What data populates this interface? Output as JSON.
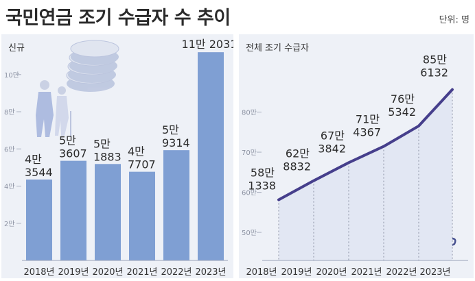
{
  "header": {
    "title": "국민연금 조기 수급자 수 추이",
    "unit": "단위: 명"
  },
  "colors": {
    "bar": "#7f9fd3",
    "line": "#463f8c",
    "grid": "#cfd6e6",
    "panel": "#eef1f7",
    "text": "#2b2b2b",
    "illustration": "#a8b7de"
  },
  "icons": {
    "left": "elderly-couple-coins-icon",
    "right": "money-bag-hand-icon"
  },
  "chart_data": [
    {
      "type": "bar",
      "title": "신규",
      "categories": [
        "2018년",
        "2019년",
        "2020년",
        "2021년",
        "2022년",
        "2023년"
      ],
      "values": [
        43544,
        53607,
        51883,
        47707,
        59314,
        112031
      ],
      "data_labels": [
        [
          "4만",
          "3544"
        ],
        [
          "5만",
          "3607"
        ],
        [
          "5만",
          "1883"
        ],
        [
          "4만",
          "7707"
        ],
        [
          "5만",
          "9314"
        ],
        [
          "11만 2031"
        ]
      ],
      "yticks": [
        20000,
        40000,
        60000,
        80000,
        100000
      ],
      "ytick_labels": [
        "2만",
        "4만",
        "6만",
        "8만",
        "10만"
      ],
      "ylim": [
        0,
        125000
      ],
      "grid": false
    },
    {
      "type": "line",
      "title": "전체 조기 수급자",
      "categories": [
        "2018년",
        "2019년",
        "2020년",
        "2021년",
        "2022년",
        "2023년"
      ],
      "values": [
        581338,
        628832,
        673842,
        714367,
        765342,
        856132
      ],
      "data_labels": [
        [
          "58만",
          "1338"
        ],
        [
          "62만",
          "8832"
        ],
        [
          "67만",
          "3842"
        ],
        [
          "71만",
          "4367"
        ],
        [
          "76만",
          "5342"
        ],
        [
          "85만",
          "6132"
        ]
      ],
      "yticks": [
        500000,
        600000,
        700000,
        800000
      ],
      "ytick_labels": [
        "50만",
        "60만",
        "70만",
        "80만"
      ],
      "ylim": [
        430000,
        900000
      ],
      "grid": false
    }
  ]
}
